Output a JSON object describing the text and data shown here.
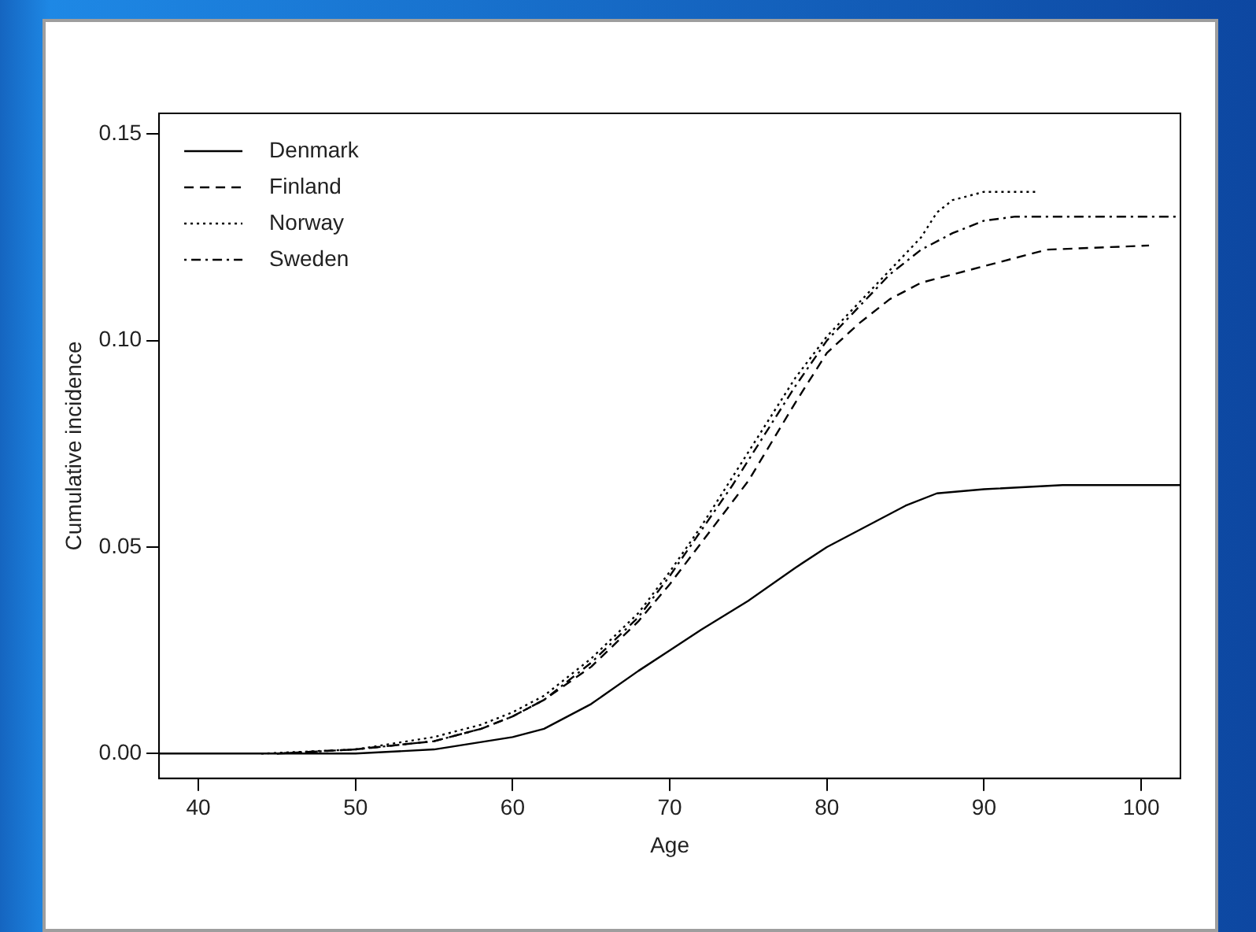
{
  "chart_data": {
    "type": "line",
    "xlabel": "Age",
    "ylabel": "Cumulative incidence",
    "xlim": [
      37.5,
      102.5
    ],
    "xticks": [
      40,
      50,
      60,
      70,
      80,
      90,
      100
    ],
    "ylim": [
      -0.006,
      0.155
    ],
    "yticks": [
      {
        "value": 0,
        "label": "0.00"
      },
      {
        "value": 0.05,
        "label": "0.05"
      },
      {
        "value": 0.1,
        "label": "0.10"
      },
      {
        "value": 0.15,
        "label": "0.15"
      }
    ],
    "grid": false,
    "legend": "top left",
    "marker": "none",
    "series": [
      {
        "name": "Denmark",
        "color": "#000000",
        "line_style": "solid",
        "x": [
          37.5,
          50,
          55,
          60,
          62,
          65,
          68,
          70,
          72,
          75,
          78,
          80,
          83,
          85,
          87,
          90,
          95,
          102.5
        ],
        "values": [
          0,
          0,
          0.001,
          0.004,
          0.006,
          0.012,
          0.02,
          0.025,
          0.03,
          0.037,
          0.045,
          0.05,
          0.056,
          0.06,
          0.063,
          0.064,
          0.065,
          0.065
        ]
      },
      {
        "name": "Finland",
        "color": "#000000",
        "line_style": "dashed",
        "x": [
          45,
          50,
          55,
          58,
          60,
          62,
          65,
          68,
          70,
          72,
          75,
          78,
          80,
          82,
          84,
          86,
          88,
          90,
          92,
          94,
          100.5
        ],
        "values": [
          0,
          0.001,
          0.003,
          0.006,
          0.009,
          0.013,
          0.021,
          0.032,
          0.041,
          0.051,
          0.066,
          0.085,
          0.097,
          0.104,
          0.11,
          0.114,
          0.116,
          0.118,
          0.12,
          0.122,
          0.123
        ]
      },
      {
        "name": "Norway",
        "color": "#000000",
        "line_style": "dotted",
        "x": [
          44,
          50,
          55,
          58,
          60,
          62,
          65,
          68,
          70,
          72,
          74,
          76,
          78,
          80,
          82,
          84,
          86,
          87,
          88,
          90,
          93.5
        ],
        "values": [
          0,
          0.001,
          0.004,
          0.007,
          0.01,
          0.014,
          0.023,
          0.034,
          0.044,
          0.055,
          0.067,
          0.079,
          0.091,
          0.101,
          0.109,
          0.117,
          0.125,
          0.131,
          0.134,
          0.136,
          0.136
        ]
      },
      {
        "name": "Sweden",
        "color": "#000000",
        "line_style": "dashdot",
        "x": [
          45,
          50,
          55,
          58,
          60,
          62,
          65,
          68,
          70,
          72,
          74,
          76,
          78,
          80,
          82,
          84,
          86,
          88,
          90,
          92,
          102.5
        ],
        "values": [
          0,
          0.001,
          0.003,
          0.006,
          0.009,
          0.013,
          0.022,
          0.033,
          0.043,
          0.054,
          0.065,
          0.077,
          0.089,
          0.1,
          0.108,
          0.116,
          0.122,
          0.126,
          0.129,
          0.13,
          0.13
        ]
      }
    ]
  }
}
